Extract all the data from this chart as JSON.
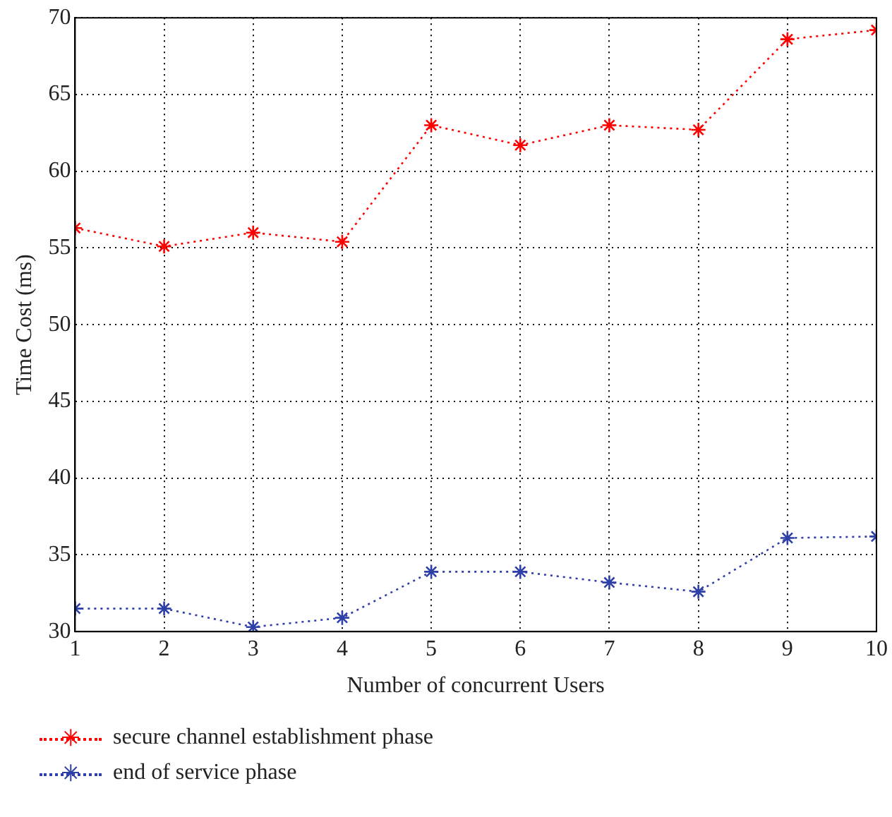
{
  "chart_data": {
    "type": "line",
    "xlabel": "Number of concurrent Users",
    "ylabel": "Time Cost (ms)",
    "x": [
      1,
      2,
      3,
      4,
      5,
      6,
      7,
      8,
      9,
      10
    ],
    "xlim": [
      1,
      10
    ],
    "xticks": [
      1,
      2,
      3,
      4,
      5,
      6,
      7,
      8,
      9,
      10
    ],
    "ylim": [
      30,
      70
    ],
    "yticks": [
      30,
      35,
      40,
      45,
      50,
      55,
      60,
      65,
      70
    ],
    "grid": true,
    "legend": "bottom",
    "marker": "cross",
    "line_style": "dotted",
    "series": [
      {
        "name": "secure channel establishment phase",
        "color": "#ff0000",
        "values": [
          56.3,
          55.1,
          56.0,
          55.4,
          63.0,
          61.7,
          63.0,
          62.7,
          68.6,
          69.2
        ]
      },
      {
        "name": "end of service phase",
        "color": "#2e3fa8",
        "values": [
          31.5,
          31.5,
          30.3,
          30.9,
          33.9,
          33.9,
          33.2,
          32.6,
          36.1,
          36.2
        ]
      }
    ]
  }
}
